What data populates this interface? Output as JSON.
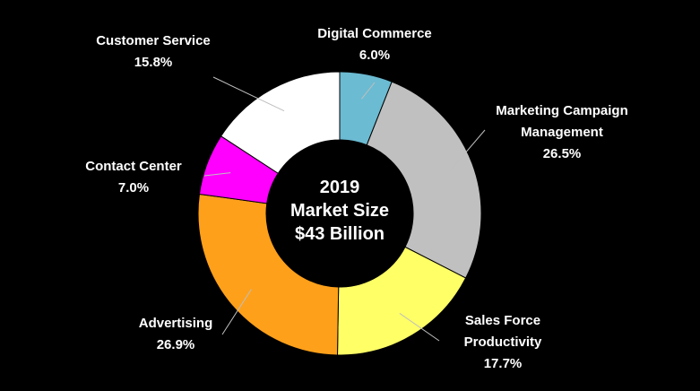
{
  "chart_data": {
    "type": "pie",
    "donut": true,
    "center_text": [
      "2019",
      "Market Size",
      "$43 Billion"
    ],
    "legend": "none",
    "slices": [
      {
        "name_lines": [
          "Digital Commerce"
        ],
        "pct_label": "6.0%",
        "value": 6.0,
        "color": "#6bbbd2"
      },
      {
        "name_lines": [
          "Marketing Campaign",
          "Management"
        ],
        "pct_label": "26.5%",
        "value": 26.5,
        "color": "#c0c0c0"
      },
      {
        "name_lines": [
          "Sales Force",
          "Productivity"
        ],
        "pct_label": "17.7%",
        "value": 17.7,
        "color": "#ffff66"
      },
      {
        "name_lines": [
          "Advertising"
        ],
        "pct_label": "26.9%",
        "value": 26.9,
        "color": "#ffa01a"
      },
      {
        "name_lines": [
          "Contact Center"
        ],
        "pct_label": "7.0%",
        "value": 7.0,
        "color": "#ff00ff"
      },
      {
        "name_lines": [
          "Customer Service"
        ],
        "pct_label": "15.8%",
        "value": 15.8,
        "color": "#ffffff"
      }
    ]
  }
}
